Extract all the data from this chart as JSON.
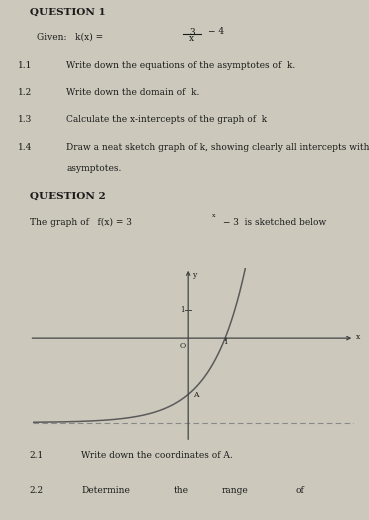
{
  "title_q1": "QUESTION 1",
  "given_text": "Given:   k(x) =",
  "fraction_num": "3",
  "fraction_den": "x",
  "minus_4": "− 4",
  "q1_1_num": "1.1",
  "q1_1_txt": "Write down the equations of the asymptotes of  k.",
  "q1_2_num": "1.2",
  "q1_2_txt": "Write down the domain of  k.",
  "q1_3_num": "1.3",
  "q1_3_txt": "Calculate the x-intercepts of the graph of  k",
  "q1_4_num": "1.4",
  "q1_4_txt1": "Draw a neat sketch graph of k, showing clearly all intercepts with the axes and",
  "q1_4_txt2": "asymptotes.",
  "title_q2": "QUESTION 2",
  "q2_intro1": "The graph of   f(x) = 3",
  "q2_sup": "x",
  "q2_intro2": " − 3  is sketched below",
  "q2_1_num": "2.1",
  "q2_1_txt": "Write down the coordinates of A.",
  "q2_2_num": "2.2",
  "q2_2_parts": [
    "Determine",
    "the",
    "range",
    "of"
  ],
  "asymptote_y": -3,
  "x_range": [
    -4.2,
    4.5
  ],
  "y_range": [
    -3.6,
    2.5
  ],
  "curve_color": "#5a5a5a",
  "asymptote_color": "#888888",
  "axes_color": "#444444",
  "bg_color": "#ccc9bc",
  "text_color": "#1a1a1a",
  "label_A": "A",
  "label_O": "O",
  "axis_label_x": "x",
  "axis_label_y": "y",
  "point_A": [
    0,
    -2
  ],
  "fs_title": 7.5,
  "fs_body": 6.5,
  "fs_small": 5.5
}
